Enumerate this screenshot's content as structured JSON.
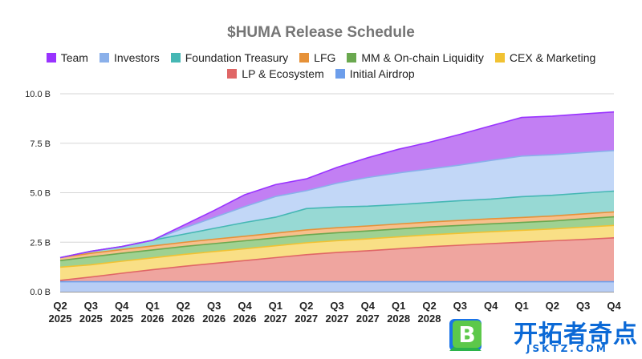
{
  "chart_data": {
    "type": "area",
    "stacked": true,
    "title": "$HUMA Release Schedule",
    "categories": [
      "Q2 2025",
      "Q3 2025",
      "Q4 2025",
      "Q1 2026",
      "Q2 2026",
      "Q3 2026",
      "Q4 2026",
      "Q1 2027",
      "Q2 2027",
      "Q3 2027",
      "Q4 2027",
      "Q1 2028",
      "Q2 2028",
      "Q3 2028",
      "Q4 2028",
      "Q1 2029",
      "Q2 2029",
      "Q3 2029",
      "Q4 2029"
    ],
    "x_tick_labels": [
      [
        "Q2",
        "2025"
      ],
      [
        "Q3",
        "2025"
      ],
      [
        "Q4",
        "2025"
      ],
      [
        "Q1",
        "2026"
      ],
      [
        "Q2",
        "2026"
      ],
      [
        "Q3",
        "2026"
      ],
      [
        "Q4",
        "2026"
      ],
      [
        "Q1",
        "2027"
      ],
      [
        "Q2",
        "2027"
      ],
      [
        "Q3",
        "2027"
      ],
      [
        "Q4",
        "2027"
      ],
      [
        "Q1",
        "2028"
      ],
      [
        "Q2",
        "2028"
      ],
      [
        "Q3",
        ""
      ],
      [
        "Q4",
        ""
      ],
      [
        "Q1",
        ""
      ],
      [
        "Q2",
        ""
      ],
      [
        "Q3",
        ""
      ],
      [
        "Q4",
        ""
      ]
    ],
    "y_ticks": [
      "0.0 B",
      "2.5 B",
      "5.0 B",
      "7.5 B",
      "10.0 B"
    ],
    "ylim": [
      0,
      10
    ],
    "grid": true,
    "legend_position": "top",
    "legend_rows": [
      [
        "Team",
        "Investors",
        "Foundation Treasury",
        "LFG",
        "MM & On-chain Liquidity",
        "CEX & Marketing"
      ],
      [
        "LP & Ecosystem",
        "Initial Airdrop"
      ]
    ],
    "series": [
      {
        "name": "Initial Airdrop",
        "color": "#6d9eeb",
        "fill": "#b7cdf5",
        "values": [
          0.5,
          0.5,
          0.5,
          0.5,
          0.5,
          0.5,
          0.5,
          0.5,
          0.5,
          0.5,
          0.5,
          0.5,
          0.5,
          0.5,
          0.5,
          0.5,
          0.5,
          0.5,
          0.5
        ]
      },
      {
        "name": "LP & Ecosystem",
        "color": "#e06666",
        "fill": "#efa59f",
        "values": [
          0.07,
          0.24,
          0.43,
          0.61,
          0.78,
          0.93,
          1.07,
          1.22,
          1.37,
          1.48,
          1.57,
          1.67,
          1.77,
          1.85,
          1.93,
          2.0,
          2.07,
          2.14,
          2.22
        ]
      },
      {
        "name": "CEX & Marketing",
        "color": "#f1c232",
        "fill": "#f9df86",
        "values": [
          0.67,
          0.62,
          0.61,
          0.6,
          0.6,
          0.6,
          0.6,
          0.6,
          0.6,
          0.6,
          0.6,
          0.6,
          0.6,
          0.6,
          0.6,
          0.6,
          0.6,
          0.62,
          0.63
        ]
      },
      {
        "name": "MM & On-chain Liquidity",
        "color": "#6aa84f",
        "fill": "#9fd191",
        "values": [
          0.33,
          0.4,
          0.4,
          0.4,
          0.4,
          0.4,
          0.4,
          0.4,
          0.4,
          0.4,
          0.4,
          0.4,
          0.4,
          0.4,
          0.4,
          0.4,
          0.4,
          0.42,
          0.43
        ]
      },
      {
        "name": "LFG",
        "color": "#e69138",
        "fill": "#f6c08c",
        "values": [
          0.15,
          0.18,
          0.19,
          0.2,
          0.21,
          0.22,
          0.23,
          0.24,
          0.25,
          0.25,
          0.25,
          0.25,
          0.25,
          0.25,
          0.25,
          0.25,
          0.25,
          0.25,
          0.25
        ]
      },
      {
        "name": "Foundation Treasury",
        "color": "#45b7b4",
        "fill": "#97d9d4",
        "values": [
          0.0,
          0.1,
          0.15,
          0.29,
          0.41,
          0.55,
          0.7,
          0.8,
          1.08,
          1.05,
          1.0,
          0.98,
          0.98,
          1.0,
          1.0,
          1.05,
          1.05,
          1.05,
          1.05
        ]
      },
      {
        "name": "Investors",
        "color": "#8ab0ea",
        "fill": "#c2d7f7",
        "values": [
          0.0,
          0.0,
          0.0,
          0.0,
          0.3,
          0.55,
          0.8,
          1.05,
          0.9,
          1.2,
          1.45,
          1.6,
          1.7,
          1.8,
          1.95,
          2.05,
          2.05,
          2.05,
          2.05
        ]
      },
      {
        "name": "Team",
        "color": "#9933ff",
        "fill": "#c27ff3",
        "values": [
          0.0,
          0.0,
          0.0,
          0.0,
          0.15,
          0.35,
          0.6,
          0.6,
          0.6,
          0.8,
          1.0,
          1.2,
          1.35,
          1.55,
          1.75,
          1.95,
          1.95,
          1.95,
          1.95
        ]
      }
    ]
  },
  "watermark": {
    "logo_letter": "B",
    "name_cn": "开拓者奇点",
    "domain": "JSKTZ.COM"
  }
}
